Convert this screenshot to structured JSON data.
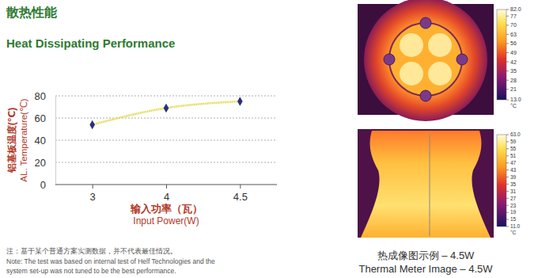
{
  "header": {
    "title": "散热性能",
    "subtitle": "Heat Dissipating Performance"
  },
  "chart_data": {
    "type": "line",
    "categories": [
      "3",
      "4",
      "4.5"
    ],
    "series": [
      {
        "color": "#e3d84a",
        "marker": "diamond",
        "values": [
          54,
          69,
          75
        ]
      }
    ],
    "xlabel": [
      "输入功率（瓦）",
      "Input Power(W)"
    ],
    "ylabel": [
      "铝基板温度(℃)",
      "AL. Temperature(℃)"
    ],
    "ylim": [
      0,
      80
    ],
    "yticks": [
      0,
      20,
      40,
      60,
      80
    ],
    "grid": true
  },
  "notes": [
    "注：基于某个普通方案实测数据，并不代表最佳情况。",
    "Note: The test was based on internal test of Helf Technologies and the",
    "system set-up was not tuned to be the best performance."
  ],
  "thermal": {
    "caption": [
      "热成像图示例 – 4.5W",
      "Thermal Meter Image – 4.5W"
    ],
    "images": [
      {
        "colorbar": {
          "range": [
            13,
            82
          ],
          "unit": "°C",
          "ticks": [
            {
              "value": 82,
              "label": "82.0"
            },
            77,
            70,
            63,
            56,
            49,
            42,
            35,
            28,
            21,
            {
              "value": 13,
              "label": "13.0"
            }
          ]
        }
      },
      {
        "colorbar": {
          "range": [
            11,
            63
          ],
          "unit": "°C",
          "ticks": [
            {
              "value": 63,
              "label": "63.0"
            },
            59,
            55,
            51,
            47,
            43,
            39,
            35,
            31,
            27,
            23,
            19,
            15,
            {
              "value": 11,
              "label": "11.0"
            }
          ]
        }
      }
    ]
  }
}
